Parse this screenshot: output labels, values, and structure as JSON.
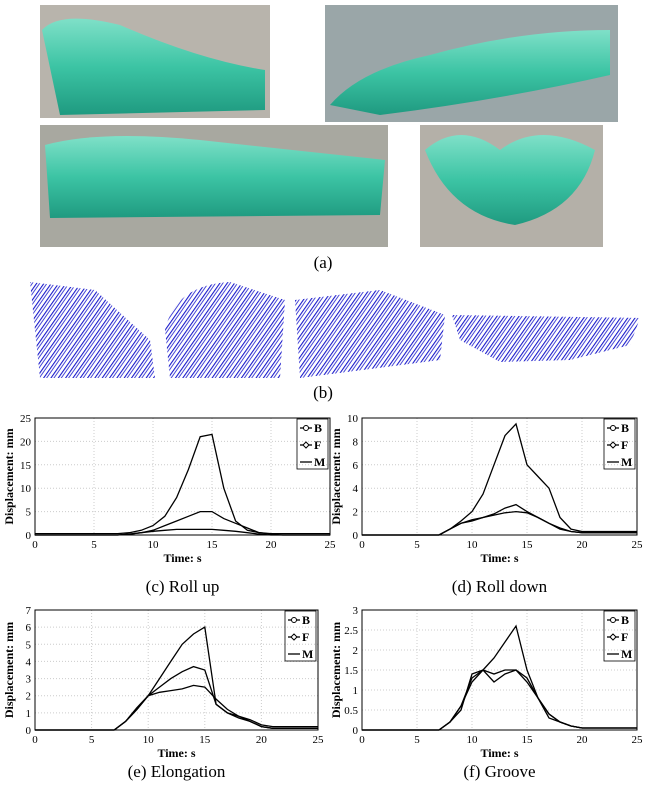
{
  "figure": {
    "label_a": "(a)",
    "label_b": "(b)"
  },
  "chart_data": [
    {
      "type": "line",
      "caption": "(c) Roll up",
      "xlabel": "Time: s",
      "ylabel": "Displacement: mm",
      "grid": true,
      "x": [
        0,
        1,
        2,
        3,
        4,
        5,
        6,
        7,
        8,
        9,
        10,
        11,
        12,
        13,
        14,
        15,
        16,
        17,
        18,
        19,
        20,
        21,
        22,
        23,
        24,
        25
      ],
      "xlim": [
        0,
        25
      ],
      "xticks": [
        0,
        5,
        10,
        15,
        20,
        25
      ],
      "ylim": [
        0,
        25
      ],
      "yticks": [
        0,
        5,
        10,
        15,
        20,
        25
      ],
      "series": [
        {
          "name": "B",
          "color": "#000000",
          "values": [
            0.3,
            0.3,
            0.3,
            0.3,
            0.3,
            0.3,
            0.3,
            0.3,
            0.5,
            1,
            2,
            4,
            8,
            14,
            21,
            21.5,
            10,
            3,
            1,
            0.5,
            0.3,
            0.3,
            0.3,
            0.3,
            0.3,
            0.3
          ]
        },
        {
          "name": "F",
          "color": "#000000",
          "values": [
            0,
            0,
            0,
            0,
            0,
            0,
            0,
            0,
            0.2,
            0.5,
            1,
            2,
            3,
            4,
            5,
            5,
            3.5,
            2.5,
            1.5,
            0.5,
            0.2,
            0,
            0,
            0,
            0,
            0
          ]
        },
        {
          "name": "M",
          "color": "#000000",
          "values": [
            0,
            0,
            0,
            0,
            0,
            0,
            0,
            0,
            0.2,
            0.5,
            0.8,
            1,
            1.2,
            1.2,
            1.2,
            1.2,
            1,
            0.8,
            0.5,
            0.2,
            0,
            0,
            0,
            0,
            0,
            0
          ]
        }
      ]
    },
    {
      "type": "line",
      "caption": "(d) Roll down",
      "xlabel": "Time: s",
      "ylabel": "Displacement: mm",
      "grid": true,
      "x": [
        0,
        1,
        2,
        3,
        4,
        5,
        6,
        7,
        8,
        9,
        10,
        11,
        12,
        13,
        14,
        15,
        16,
        17,
        18,
        19,
        20,
        21,
        22,
        23,
        24,
        25
      ],
      "xlim": [
        0,
        25
      ],
      "xticks": [
        0,
        5,
        10,
        15,
        20,
        25
      ],
      "ylim": [
        0,
        10
      ],
      "yticks": [
        0,
        2,
        4,
        6,
        8,
        10
      ],
      "series": [
        {
          "name": "B",
          "color": "#000000",
          "values": [
            0,
            0,
            0,
            0,
            0,
            0,
            0,
            0,
            0.5,
            1.2,
            2,
            3.5,
            6,
            8.5,
            9.5,
            6,
            5,
            4,
            1.5,
            0.5,
            0.3,
            0.3,
            0.3,
            0.3,
            0.3,
            0.3
          ]
        },
        {
          "name": "F",
          "color": "#000000",
          "values": [
            0,
            0,
            0,
            0,
            0,
            0,
            0,
            0,
            0.5,
            1,
            1.2,
            1.5,
            1.8,
            2.3,
            2.6,
            2,
            1.5,
            1,
            0.6,
            0.3,
            0.2,
            0.2,
            0.2,
            0.2,
            0.2,
            0.2
          ]
        },
        {
          "name": "M",
          "color": "#000000",
          "values": [
            0,
            0,
            0,
            0,
            0,
            0,
            0,
            0,
            0.5,
            1,
            1.3,
            1.5,
            1.7,
            1.9,
            2,
            1.9,
            1.5,
            1,
            0.5,
            0.3,
            0.2,
            0.2,
            0.2,
            0.2,
            0.2,
            0.2
          ]
        }
      ]
    },
    {
      "type": "line",
      "caption": "(e) Elongation",
      "xlabel": "Time: s",
      "ylabel": "Displacement: mm",
      "grid": true,
      "x": [
        0,
        1,
        2,
        3,
        4,
        5,
        6,
        7,
        8,
        9,
        10,
        11,
        12,
        13,
        14,
        15,
        16,
        17,
        18,
        19,
        20,
        21,
        22,
        23,
        24,
        25
      ],
      "xlim": [
        0,
        25
      ],
      "xticks": [
        0,
        5,
        10,
        15,
        20,
        25
      ],
      "ylim": [
        0,
        7
      ],
      "yticks": [
        0,
        1,
        2,
        3,
        4,
        5,
        6,
        7
      ],
      "series": [
        {
          "name": "B",
          "color": "#000000",
          "values": [
            0,
            0,
            0,
            0,
            0,
            0,
            0,
            0,
            0.5,
            1.2,
            2,
            3,
            4,
            5,
            5.6,
            6,
            1.5,
            1,
            0.8,
            0.6,
            0.3,
            0.2,
            0.2,
            0.2,
            0.2,
            0.2
          ]
        },
        {
          "name": "F",
          "color": "#000000",
          "values": [
            0,
            0,
            0,
            0,
            0,
            0,
            0,
            0,
            0.5,
            1.2,
            2,
            2.5,
            3,
            3.4,
            3.7,
            3.5,
            1.5,
            1,
            0.7,
            0.5,
            0.2,
            0.1,
            0.1,
            0.1,
            0.1,
            0.1
          ]
        },
        {
          "name": "M",
          "color": "#000000",
          "values": [
            0,
            0,
            0,
            0,
            0,
            0,
            0,
            0,
            0.5,
            1.3,
            2,
            2.2,
            2.3,
            2.4,
            2.6,
            2.5,
            1.8,
            1.2,
            0.8,
            0.5,
            0.2,
            0.1,
            0.1,
            0.1,
            0.1,
            0.1
          ]
        }
      ]
    },
    {
      "type": "line",
      "caption": "(f) Groove",
      "xlabel": "Time: s",
      "ylabel": "Displacement: mm",
      "grid": true,
      "x": [
        0,
        1,
        2,
        3,
        4,
        5,
        6,
        7,
        8,
        9,
        10,
        11,
        12,
        13,
        14,
        15,
        16,
        17,
        18,
        19,
        20,
        21,
        22,
        23,
        24,
        25
      ],
      "xlim": [
        0,
        25
      ],
      "xticks": [
        0,
        5,
        10,
        15,
        20,
        25
      ],
      "ylim": [
        0,
        3
      ],
      "yticks": [
        0,
        0.5,
        1,
        1.5,
        2,
        2.5,
        3
      ],
      "series": [
        {
          "name": "B",
          "color": "#000000",
          "values": [
            0,
            0,
            0,
            0,
            0,
            0,
            0,
            0,
            0.2,
            0.6,
            1.2,
            1.5,
            1.8,
            2.2,
            2.6,
            1.5,
            0.8,
            0.4,
            0.2,
            0.1,
            0.05,
            0.05,
            0.05,
            0.05,
            0.05,
            0.05
          ]
        },
        {
          "name": "F",
          "color": "#000000",
          "values": [
            0,
            0,
            0,
            0,
            0,
            0,
            0,
            0,
            0.2,
            0.6,
            1.3,
            1.5,
            1.4,
            1.5,
            1.5,
            1.2,
            0.8,
            0.4,
            0.2,
            0.1,
            0.05,
            0.05,
            0.05,
            0.05,
            0.05,
            0.05
          ]
        },
        {
          "name": "M",
          "color": "#000000",
          "values": [
            0,
            0,
            0,
            0,
            0,
            0,
            0,
            0,
            0.2,
            0.5,
            1.4,
            1.5,
            1.2,
            1.4,
            1.5,
            1.3,
            0.8,
            0.3,
            0.2,
            0.1,
            0.05,
            0.05,
            0.05,
            0.05,
            0.05,
            0.05
          ]
        }
      ]
    }
  ]
}
